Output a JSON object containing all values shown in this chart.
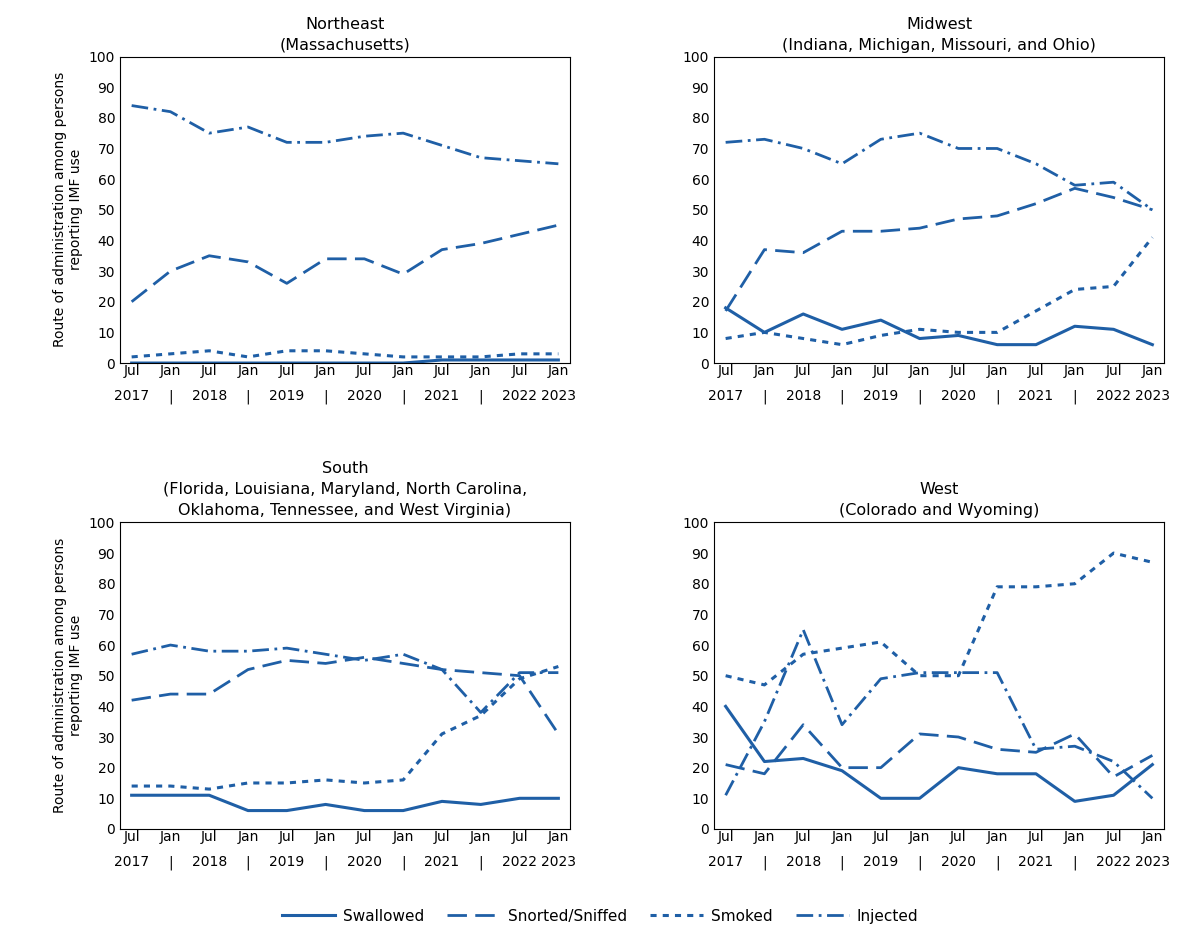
{
  "panels": [
    {
      "title": "Northeast",
      "subtitle": "(Massachusetts)",
      "swallowed": [
        0,
        0,
        0,
        0,
        0,
        0,
        0,
        0,
        1,
        1,
        1,
        1
      ],
      "snorted": [
        20,
        30,
        35,
        33,
        26,
        34,
        34,
        29,
        37,
        39,
        42,
        45
      ],
      "smoked": [
        2,
        3,
        4,
        2,
        4,
        4,
        3,
        2,
        2,
        2,
        3,
        3
      ],
      "injected": [
        84,
        82,
        75,
        77,
        72,
        72,
        74,
        75,
        71,
        67,
        66,
        65
      ]
    },
    {
      "title": "Midwest",
      "subtitle": "(Indiana, Michigan, Missouri, and Ohio)",
      "swallowed": [
        18,
        10,
        16,
        11,
        14,
        8,
        9,
        6,
        6,
        12,
        11,
        6
      ],
      "snorted": [
        17,
        37,
        36,
        43,
        43,
        44,
        47,
        48,
        52,
        57,
        54,
        50
      ],
      "smoked": [
        8,
        10,
        8,
        6,
        9,
        11,
        10,
        10,
        17,
        24,
        25,
        41
      ],
      "injected": [
        72,
        73,
        70,
        65,
        73,
        75,
        70,
        70,
        65,
        58,
        59,
        50
      ]
    },
    {
      "title": "South",
      "subtitle": "(Florida, Louisiana, Maryland, North Carolina,\nOklahoma, Tennessee, and West Virginia)",
      "swallowed": [
        11,
        11,
        11,
        6,
        6,
        8,
        6,
        6,
        9,
        8,
        10,
        10
      ],
      "snorted": [
        42,
        44,
        44,
        52,
        55,
        54,
        56,
        54,
        52,
        51,
        50,
        31
      ],
      "smoked": [
        14,
        14,
        13,
        15,
        15,
        16,
        15,
        16,
        31,
        37,
        49,
        53
      ],
      "injected": [
        57,
        60,
        58,
        58,
        59,
        57,
        55,
        57,
        52,
        38,
        51,
        51
      ]
    },
    {
      "title": "West",
      "subtitle": "(Colorado and Wyoming)",
      "swallowed": [
        40,
        22,
        23,
        19,
        10,
        10,
        20,
        18,
        18,
        9,
        11,
        21
      ],
      "snorted": [
        21,
        18,
        34,
        20,
        20,
        31,
        30,
        26,
        25,
        31,
        17,
        24
      ],
      "smoked": [
        50,
        47,
        57,
        59,
        61,
        50,
        50,
        79,
        79,
        80,
        90,
        87
      ],
      "injected": [
        11,
        35,
        65,
        34,
        49,
        51,
        51,
        51,
        26,
        27,
        22,
        10
      ]
    }
  ],
  "line_color": "#1f5fa6",
  "ylabel": "Route of administration among persons\nreporting IMF use",
  "ylim": [
    0,
    100
  ],
  "yticks": [
    0,
    10,
    20,
    30,
    40,
    50,
    60,
    70,
    80,
    90,
    100
  ],
  "xtick_top": [
    "Jul",
    "Jan",
    "Jul",
    "Jan",
    "Jul",
    "Jan",
    "Jul",
    "Jan",
    "Jul",
    "Jan",
    "Jul",
    "Jan"
  ],
  "xtick_bottom": [
    "2017",
    "|",
    "2018",
    "|",
    "2019",
    "|",
    "2020",
    "|",
    "2021",
    "|",
    "2022",
    "2023"
  ]
}
